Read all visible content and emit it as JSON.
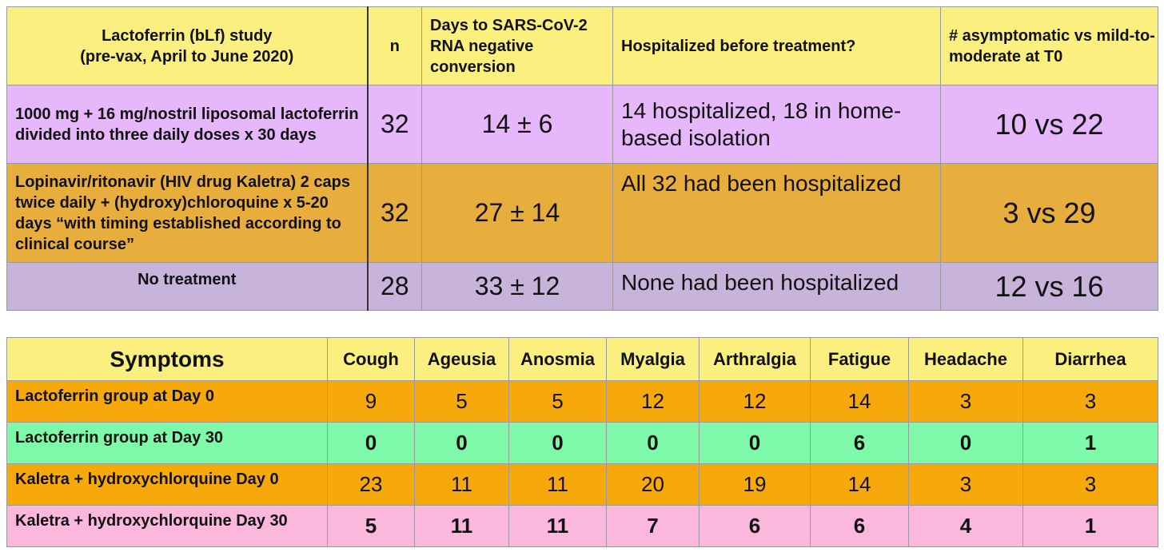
{
  "study_table": {
    "headers": {
      "study": "Lactoferrin (bLf) study\n(pre-vax, April to June 2020)",
      "n": "n",
      "days": "Days to SARS-CoV-2 RNA negative conversion",
      "hospitalized": "Hospitalized before treatment?",
      "asymptomatic": "# asymptomatic vs mild-to-moderate at T0"
    },
    "rows": [
      {
        "group": "1000 mg + 16 mg/nostril liposomal lactoferrin divided into three daily doses x 30 days",
        "n": "32",
        "days": "14 ± 6",
        "hospitalized": "14 hospitalized, 18 in home-based isolation",
        "asymptomatic": "10 vs 22"
      },
      {
        "group": "Lopinavir/ritonavir (HIV drug Kaletra) 2 caps twice daily + (hydroxy)chloroquine x 5-20 days “with timing established according to clinical course”",
        "n": "32",
        "days": "27 ± 14",
        "hospitalized": "All 32 had been hospitalized",
        "asymptomatic": "3 vs 29"
      },
      {
        "group": "No treatment",
        "n": "28",
        "days": "33 ± 12",
        "hospitalized": "None had been hospitalized",
        "asymptomatic": "12 vs 16"
      }
    ]
  },
  "symptom_table": {
    "corner": "Symptoms",
    "columns": [
      "Cough",
      "Ageusia",
      "Anosmia",
      "Myalgia",
      "Arthralgia",
      "Fatigue",
      "Headache",
      "Diarrhea"
    ],
    "rows": [
      {
        "label": "Lactoferrin group at Day 0",
        "values": [
          "9",
          "5",
          "5",
          "12",
          "12",
          "14",
          "3",
          "3"
        ]
      },
      {
        "label": "Lactoferrin group at Day 30",
        "values": [
          "0",
          "0",
          "0",
          "0",
          "0",
          "6",
          "0",
          "1"
        ]
      },
      {
        "label": "Kaletra + hydroxychlorquine Day 0",
        "values": [
          "23",
          "11",
          "11",
          "20",
          "19",
          "14",
          "3",
          "3"
        ]
      },
      {
        "label": "Kaletra + hydroxychlorquine Day 30",
        "values": [
          "5",
          "11",
          "11",
          "7",
          "6",
          "6",
          "4",
          "1"
        ]
      }
    ]
  },
  "colors": {
    "header": "#fbf07f",
    "lactoferrin_row": "#e6b8fb",
    "kaletra_row": "#e8ae3d",
    "no_treatment_row": "#c8b3da",
    "day0_row": "#f7a80b",
    "lactoferrin_day30_row": "#7ef9a9",
    "kaletra_day30_row": "#fbb7dc"
  }
}
